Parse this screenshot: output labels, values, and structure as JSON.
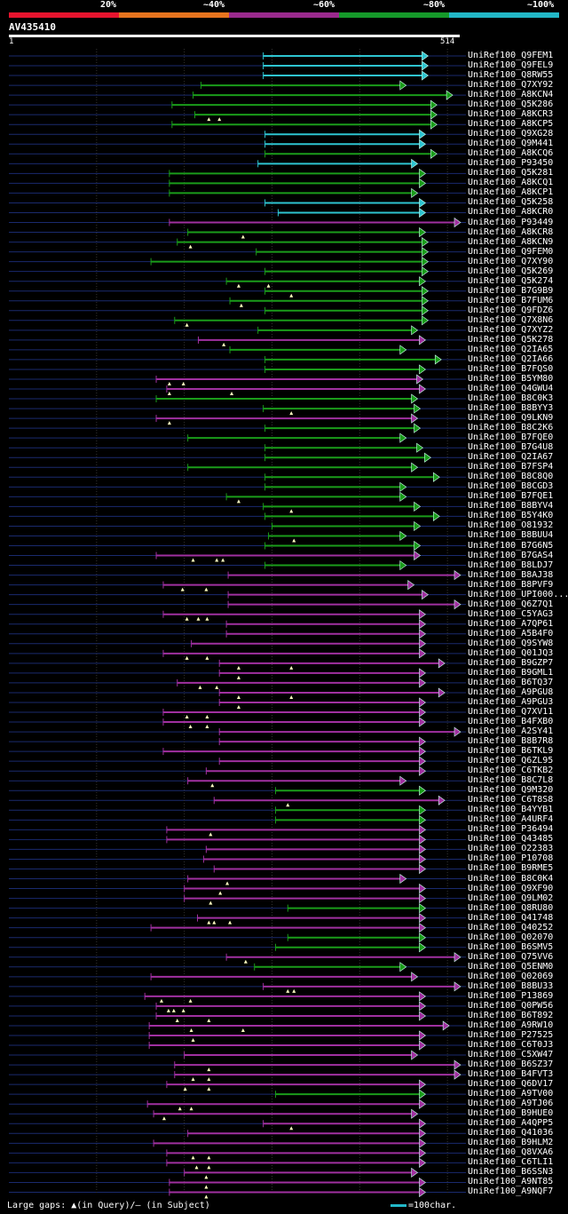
{
  "scale": {
    "segments": [
      {
        "label": "20%",
        "color": "#e8142e"
      },
      {
        "label": "~40%",
        "color": "#e8741e"
      },
      {
        "label": "~60%",
        "color": "#9b2a8e"
      },
      {
        "label": "~80%",
        "color": "#159a2a"
      },
      {
        "label": "~100%",
        "color": "#22b8c8"
      }
    ]
  },
  "query": {
    "name": "AV435410",
    "start": "1",
    "end": "514",
    "length": 514
  },
  "colors": {
    "cyan": "#2ec4d0",
    "green": "#1a9c1a",
    "purple": "#a030a0",
    "grid": "#1a2a6e",
    "mark": "#ffffc0"
  },
  "hits": [
    {
      "name": "UniRef100_Q9FEM1",
      "color": "cyan",
      "start": 290,
      "end": 477,
      "gaps": []
    },
    {
      "name": "UniRef100_Q9FEL9",
      "color": "cyan",
      "start": 290,
      "end": 477,
      "gaps": []
    },
    {
      "name": "UniRef100_Q8RW55",
      "color": "cyan",
      "start": 290,
      "end": 477,
      "gaps": []
    },
    {
      "name": "UniRef100_Q7XY92",
      "color": "green",
      "start": 219,
      "end": 452,
      "gaps": []
    },
    {
      "name": "UniRef100_A8KCN4",
      "color": "green",
      "start": 210,
      "end": 505,
      "gaps": []
    },
    {
      "name": "UniRef100_Q5K286",
      "color": "green",
      "start": 186,
      "end": 487,
      "gaps": []
    },
    {
      "name": "UniRef100_A8KCR3",
      "color": "green",
      "start": 212,
      "end": 487,
      "gaps": [
        228,
        240
      ]
    },
    {
      "name": "UniRef100_A8KCP5",
      "color": "green",
      "start": 186,
      "end": 487,
      "gaps": []
    },
    {
      "name": "UniRef100_Q9XG28",
      "color": "cyan",
      "start": 292,
      "end": 474,
      "gaps": []
    },
    {
      "name": "UniRef100_Q9M441",
      "color": "cyan",
      "start": 292,
      "end": 474,
      "gaps": []
    },
    {
      "name": "UniRef100_A8KCQ6",
      "color": "green",
      "start": 292,
      "end": 487,
      "gaps": []
    },
    {
      "name": "UniRef100_P93450",
      "color": "cyan",
      "start": 284,
      "end": 465,
      "gaps": []
    },
    {
      "name": "UniRef100_Q5K281",
      "color": "green",
      "start": 183,
      "end": 474,
      "gaps": []
    },
    {
      "name": "UniRef100_A8KCQ1",
      "color": "green",
      "start": 183,
      "end": 474,
      "gaps": []
    },
    {
      "name": "UniRef100_A8KCP1",
      "color": "green",
      "start": 183,
      "end": 465,
      "gaps": []
    },
    {
      "name": "UniRef100_Q5K258",
      "color": "cyan",
      "start": 292,
      "end": 474,
      "gaps": []
    },
    {
      "name": "UniRef100_A8KCR0",
      "color": "cyan",
      "start": 307,
      "end": 474,
      "gaps": []
    },
    {
      "name": "UniRef100_P93449",
      "color": "purple",
      "start": 183,
      "end": 514,
      "gaps": []
    },
    {
      "name": "UniRef100_A8KCR8",
      "color": "green",
      "start": 204,
      "end": 474,
      "gaps": [
        267
      ]
    },
    {
      "name": "UniRef100_A8KCN9",
      "color": "green",
      "start": 192,
      "end": 477,
      "gaps": [
        207
      ]
    },
    {
      "name": "UniRef100_Q9FEM0",
      "color": "green",
      "start": 282,
      "end": 477,
      "gaps": []
    },
    {
      "name": "UniRef100_Q7XY90",
      "color": "green",
      "start": 162,
      "end": 477,
      "gaps": []
    },
    {
      "name": "UniRef100_Q5K269",
      "color": "green",
      "start": 292,
      "end": 477,
      "gaps": []
    },
    {
      "name": "UniRef100_Q5K274",
      "color": "green",
      "start": 248,
      "end": 474,
      "gaps": [
        262,
        296
      ]
    },
    {
      "name": "UniRef100_B7G9B9",
      "color": "green",
      "start": 292,
      "end": 477,
      "gaps": [
        322
      ]
    },
    {
      "name": "UniRef100_B7FUM6",
      "color": "green",
      "start": 252,
      "end": 477,
      "gaps": [
        265
      ]
    },
    {
      "name": "UniRef100_Q9FDZ6",
      "color": "green",
      "start": 292,
      "end": 477,
      "gaps": []
    },
    {
      "name": "UniRef100_Q7X8N6",
      "color": "green",
      "start": 189,
      "end": 477,
      "gaps": [
        203
      ]
    },
    {
      "name": "UniRef100_Q7XYZ2",
      "color": "green",
      "start": 284,
      "end": 465,
      "gaps": []
    },
    {
      "name": "UniRef100_Q5K278",
      "color": "purple",
      "start": 216,
      "end": 474,
      "gaps": [
        245
      ]
    },
    {
      "name": "UniRef100_Q2IA65",
      "color": "green",
      "start": 252,
      "end": 452,
      "gaps": []
    },
    {
      "name": "UniRef100_Q2IA66",
      "color": "green",
      "start": 292,
      "end": 492,
      "gaps": []
    },
    {
      "name": "UniRef100_B7FQS0",
      "color": "green",
      "start": 292,
      "end": 474,
      "gaps": []
    },
    {
      "name": "UniRef100_B5YM80",
      "color": "purple",
      "start": 168,
      "end": 471,
      "gaps": [
        183,
        199
      ]
    },
    {
      "name": "UniRef100_Q4GWU4",
      "color": "purple",
      "start": 180,
      "end": 474,
      "gaps": [
        183,
        254
      ]
    },
    {
      "name": "UniRef100_B8C0K3",
      "color": "green",
      "start": 168,
      "end": 465,
      "gaps": []
    },
    {
      "name": "UniRef100_B8BYY3",
      "color": "green",
      "start": 290,
      "end": 468,
      "gaps": [
        322
      ]
    },
    {
      "name": "UniRef100_Q9LKN9",
      "color": "purple",
      "start": 168,
      "end": 465,
      "gaps": [
        183
      ]
    },
    {
      "name": "UniRef100_B8C2K6",
      "color": "green",
      "start": 292,
      "end": 468,
      "gaps": []
    },
    {
      "name": "UniRef100_B7FQE0",
      "color": "green",
      "start": 204,
      "end": 452,
      "gaps": []
    },
    {
      "name": "UniRef100_B7G4U8",
      "color": "green",
      "start": 292,
      "end": 471,
      "gaps": []
    },
    {
      "name": "UniRef100_Q2IA67",
      "color": "green",
      "start": 292,
      "end": 480,
      "gaps": []
    },
    {
      "name": "UniRef100_B7FSP4",
      "color": "green",
      "start": 204,
      "end": 465,
      "gaps": []
    },
    {
      "name": "UniRef100_B8C8Q0",
      "color": "green",
      "start": 292,
      "end": 490,
      "gaps": []
    },
    {
      "name": "UniRef100_B8CGD3",
      "color": "green",
      "start": 292,
      "end": 452,
      "gaps": []
    },
    {
      "name": "UniRef100_B7FQE1",
      "color": "green",
      "start": 248,
      "end": 452,
      "gaps": [
        262
      ]
    },
    {
      "name": "UniRef100_B8BYV4",
      "color": "green",
      "start": 290,
      "end": 468,
      "gaps": [
        322
      ]
    },
    {
      "name": "UniRef100_B5Y4K0",
      "color": "green",
      "start": 292,
      "end": 490,
      "gaps": []
    },
    {
      "name": "UniRef100_O81932",
      "color": "green",
      "start": 300,
      "end": 468,
      "gaps": []
    },
    {
      "name": "UniRef100_B8BUU4",
      "color": "green",
      "start": 296,
      "end": 452,
      "gaps": [
        325
      ]
    },
    {
      "name": "UniRef100_B7G6N5",
      "color": "green",
      "start": 292,
      "end": 468,
      "gaps": []
    },
    {
      "name": "UniRef100_B7GAS4",
      "color": "purple",
      "start": 168,
      "end": 468,
      "gaps": [
        210,
        237,
        244
      ]
    },
    {
      "name": "UniRef100_B8LDJ7",
      "color": "green",
      "start": 292,
      "end": 452,
      "gaps": []
    },
    {
      "name": "UniRef100_B8AJ38",
      "color": "purple",
      "start": 250,
      "end": 514,
      "gaps": []
    },
    {
      "name": "UniRef100_B8PVF9",
      "color": "purple",
      "start": 176,
      "end": 461,
      "gaps": [
        198,
        225
      ]
    },
    {
      "name": "UniRef100_UPI000...",
      "color": "purple",
      "start": 250,
      "end": 477,
      "gaps": []
    },
    {
      "name": "UniRef100_Q6Z7Q1",
      "color": "purple",
      "start": 250,
      "end": 514,
      "gaps": []
    },
    {
      "name": "UniRef100_C5YAG3",
      "color": "purple",
      "start": 176,
      "end": 474,
      "gaps": [
        203,
        216,
        226
      ]
    },
    {
      "name": "UniRef100_A7QP61",
      "color": "purple",
      "start": 248,
      "end": 474,
      "gaps": []
    },
    {
      "name": "UniRef100_A5B4F0",
      "color": "purple",
      "start": 248,
      "end": 474,
      "gaps": []
    },
    {
      "name": "UniRef100_Q9SYW8",
      "color": "purple",
      "start": 208,
      "end": 474,
      "gaps": []
    },
    {
      "name": "UniRef100_Q01JQ3",
      "color": "purple",
      "start": 176,
      "end": 474,
      "gaps": [
        203,
        226
      ]
    },
    {
      "name": "UniRef100_B9GZP7",
      "color": "purple",
      "start": 240,
      "end": 496,
      "gaps": [
        262,
        322
      ]
    },
    {
      "name": "UniRef100_B9GML1",
      "color": "purple",
      "start": 240,
      "end": 474,
      "gaps": [
        262
      ]
    },
    {
      "name": "UniRef100_B6TQ37",
      "color": "purple",
      "start": 192,
      "end": 474,
      "gaps": [
        218,
        237
      ]
    },
    {
      "name": "UniRef100_A9PGU8",
      "color": "purple",
      "start": 240,
      "end": 496,
      "gaps": [
        262,
        322
      ]
    },
    {
      "name": "UniRef100_A9PGU3",
      "color": "purple",
      "start": 240,
      "end": 474,
      "gaps": [
        262
      ]
    },
    {
      "name": "UniRef100_Q7XV11",
      "color": "purple",
      "start": 176,
      "end": 474,
      "gaps": [
        203,
        226
      ]
    },
    {
      "name": "UniRef100_B4FXB0",
      "color": "purple",
      "start": 176,
      "end": 474,
      "gaps": [
        207,
        226
      ]
    },
    {
      "name": "UniRef100_A2SY41",
      "color": "purple",
      "start": 240,
      "end": 514,
      "gaps": []
    },
    {
      "name": "UniRef100_B8B7R8",
      "color": "purple",
      "start": 240,
      "end": 474,
      "gaps": []
    },
    {
      "name": "UniRef100_B6TKL9",
      "color": "purple",
      "start": 176,
      "end": 474,
      "gaps": []
    },
    {
      "name": "UniRef100_Q6ZL95",
      "color": "purple",
      "start": 240,
      "end": 474,
      "gaps": []
    },
    {
      "name": "UniRef100_C6TKB2",
      "color": "purple",
      "start": 225,
      "end": 474,
      "gaps": []
    },
    {
      "name": "UniRef100_B8C7L8",
      "color": "purple",
      "start": 204,
      "end": 452,
      "gaps": [
        232
      ]
    },
    {
      "name": "UniRef100_Q9M320",
      "color": "green",
      "start": 304,
      "end": 474,
      "gaps": []
    },
    {
      "name": "UniRef100_C6T8S8",
      "color": "purple",
      "start": 234,
      "end": 496,
      "gaps": [
        318
      ]
    },
    {
      "name": "UniRef100_B4YYB1",
      "color": "green",
      "start": 304,
      "end": 474,
      "gaps": []
    },
    {
      "name": "UniRef100_A4URF4",
      "color": "green",
      "start": 304,
      "end": 474,
      "gaps": []
    },
    {
      "name": "UniRef100_P36494",
      "color": "purple",
      "start": 180,
      "end": 474,
      "gaps": [
        230
      ]
    },
    {
      "name": "UniRef100_Q43485",
      "color": "purple",
      "start": 180,
      "end": 474,
      "gaps": []
    },
    {
      "name": "UniRef100_O22383",
      "color": "purple",
      "start": 225,
      "end": 474,
      "gaps": []
    },
    {
      "name": "UniRef100_P10708",
      "color": "purple",
      "start": 222,
      "end": 474,
      "gaps": []
    },
    {
      "name": "UniRef100_B9RME5",
      "color": "purple",
      "start": 234,
      "end": 474,
      "gaps": []
    },
    {
      "name": "UniRef100_B8C0K4",
      "color": "purple",
      "start": 204,
      "end": 452,
      "gaps": [
        249
      ]
    },
    {
      "name": "UniRef100_Q9XF90",
      "color": "purple",
      "start": 200,
      "end": 474,
      "gaps": [
        241
      ]
    },
    {
      "name": "UniRef100_Q9LM02",
      "color": "purple",
      "start": 200,
      "end": 474,
      "gaps": [
        230
      ]
    },
    {
      "name": "UniRef100_Q8RU80",
      "color": "green",
      "start": 318,
      "end": 474,
      "gaps": []
    },
    {
      "name": "UniRef100_Q41748",
      "color": "purple",
      "start": 215,
      "end": 474,
      "gaps": [
        228,
        234,
        252
      ]
    },
    {
      "name": "UniRef100_Q40252",
      "color": "purple",
      "start": 162,
      "end": 474,
      "gaps": []
    },
    {
      "name": "UniRef100_Q02070",
      "color": "green",
      "start": 318,
      "end": 474,
      "gaps": []
    },
    {
      "name": "UniRef100_B6SMV5",
      "color": "green",
      "start": 304,
      "end": 474,
      "gaps": []
    },
    {
      "name": "UniRef100_Q75VV6",
      "color": "purple",
      "start": 248,
      "end": 514,
      "gaps": [
        270
      ]
    },
    {
      "name": "UniRef100_Q5ENM0",
      "color": "green",
      "start": 280,
      "end": 452,
      "gaps": []
    },
    {
      "name": "UniRef100_Q02069",
      "color": "purple",
      "start": 162,
      "end": 465,
      "gaps": []
    },
    {
      "name": "UniRef100_B8BU33",
      "color": "purple",
      "start": 290,
      "end": 514,
      "gaps": [
        318,
        325
      ]
    },
    {
      "name": "UniRef100_P13869",
      "color": "purple",
      "start": 155,
      "end": 474,
      "gaps": [
        174,
        207
      ]
    },
    {
      "name": "UniRef100_Q0PW56",
      "color": "purple",
      "start": 168,
      "end": 474,
      "gaps": [
        182,
        188,
        199
      ]
    },
    {
      "name": "UniRef100_B6T892",
      "color": "purple",
      "start": 168,
      "end": 474,
      "gaps": [
        192,
        228
      ]
    },
    {
      "name": "UniRef100_A9RW10",
      "color": "purple",
      "start": 160,
      "end": 501,
      "gaps": [
        208,
        267
      ]
    },
    {
      "name": "UniRef100_P27525",
      "color": "purple",
      "start": 160,
      "end": 474,
      "gaps": [
        210
      ]
    },
    {
      "name": "UniRef100_C6T0J3",
      "color": "purple",
      "start": 160,
      "end": 474,
      "gaps": []
    },
    {
      "name": "UniRef100_C5XW47",
      "color": "purple",
      "start": 200,
      "end": 465,
      "gaps": []
    },
    {
      "name": "UniRef100_B6SZ37",
      "color": "purple",
      "start": 189,
      "end": 514,
      "gaps": [
        228
      ]
    },
    {
      "name": "UniRef100_B4FVT3",
      "color": "purple",
      "start": 189,
      "end": 514,
      "gaps": [
        210,
        228
      ]
    },
    {
      "name": "UniRef100_Q6DV17",
      "color": "purple",
      "start": 180,
      "end": 474,
      "gaps": [
        201,
        228
      ]
    },
    {
      "name": "UniRef100_A9TV00",
      "color": "green",
      "start": 304,
      "end": 474,
      "gaps": []
    },
    {
      "name": "UniRef100_A9TJ06",
      "color": "purple",
      "start": 158,
      "end": 474,
      "gaps": [
        195,
        208
      ]
    },
    {
      "name": "UniRef100_B9HUE0",
      "color": "purple",
      "start": 165,
      "end": 465,
      "gaps": [
        177
      ]
    },
    {
      "name": "UniRef100_A4QPP5",
      "color": "purple",
      "start": 290,
      "end": 474,
      "gaps": [
        322
      ]
    },
    {
      "name": "UniRef100_Q41036",
      "color": "purple",
      "start": 204,
      "end": 474,
      "gaps": []
    },
    {
      "name": "UniRef100_B9HLM2",
      "color": "purple",
      "start": 165,
      "end": 474,
      "gaps": []
    },
    {
      "name": "UniRef100_Q8VXA6",
      "color": "purple",
      "start": 180,
      "end": 474,
      "gaps": [
        210,
        228
      ]
    },
    {
      "name": "UniRef100_C6TLI1",
      "color": "purple",
      "start": 180,
      "end": 474,
      "gaps": [
        214,
        228
      ]
    },
    {
      "name": "UniRef100_B6SSN3",
      "color": "purple",
      "start": 200,
      "end": 465,
      "gaps": [
        225
      ]
    },
    {
      "name": "UniRef100_A9NT85",
      "color": "purple",
      "start": 183,
      "end": 474,
      "gaps": [
        225
      ]
    },
    {
      "name": "UniRef100_A9NQF7",
      "color": "purple",
      "start": 183,
      "end": 474,
      "gaps": [
        225
      ]
    }
  ],
  "footer": {
    "legend_text": "Large gaps: ▲(in Query)/– (in Subject)",
    "scale_text": "=100char."
  }
}
